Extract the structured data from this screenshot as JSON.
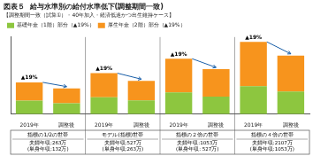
{
  "chart_data": {
    "type": "bar",
    "stacked": true,
    "title": "図表５  給与水準別の給付水準低下(調整期間一致)",
    "subtitle": "【調整期間一致（試算①）・40年加入・経済低迷かつ出生維持ケース】",
    "categories": [
      "2019年",
      "調整後",
      "2019年",
      "調整後",
      "2019年",
      "調整後",
      "2019年",
      "調整後"
    ],
    "series": [
      {
        "name": "基礎年金（1階）部分（▲19%）",
        "color": "#8dc63f",
        "values": [
          2.8,
          2.27,
          3.5,
          2.84,
          4.5,
          3.65,
          5.8,
          4.7
        ]
      },
      {
        "name": "厚生年金（2階）部分（▲19%）",
        "color": "#f7941d",
        "values": [
          3.8,
          3.08,
          5.0,
          4.05,
          7.0,
          5.67,
          9.2,
          7.45
        ]
      }
    ],
    "ylim": [
      0,
      16
    ],
    "tick_labels": "x",
    "grid": false,
    "legend": "upper left",
    "annotations": [
      {
        "text": "▲19%",
        "x": 0
      },
      {
        "text": "▲19%",
        "x": 2
      },
      {
        "text": "▲19%",
        "x": 4
      },
      {
        "text": "▲19%",
        "x": 6
      },
      {
        "from": 0,
        "to": 1,
        "color": "#1a5fa8"
      },
      {
        "from": 2,
        "to": 3,
        "color": "#1a5fa8"
      },
      {
        "from": 4,
        "to": 5,
        "color": "#1a5fa8"
      },
      {
        "from": 6,
        "to": 7,
        "color": "#1a5fa8"
      }
    ],
    "x_groups": [
      {
        "label": "指標の1/2の世帯",
        "notes": [
          "夫婦年収:263万",
          "(単身年収:132万)"
        ]
      },
      {
        "label": "モデル(指標)世帯",
        "notes": [
          "夫婦年収:527万",
          "(単身年収:263万)"
        ]
      },
      {
        "label": "指標の２倍の世帯",
        "notes": [
          "夫婦年収:1053万",
          "(単身年収: 527万)"
        ]
      },
      {
        "label": "指標の４倍の世帯",
        "notes": [
          "夫婦年収:2107万",
          "(単身年収:1053万)"
        ]
      }
    ]
  }
}
